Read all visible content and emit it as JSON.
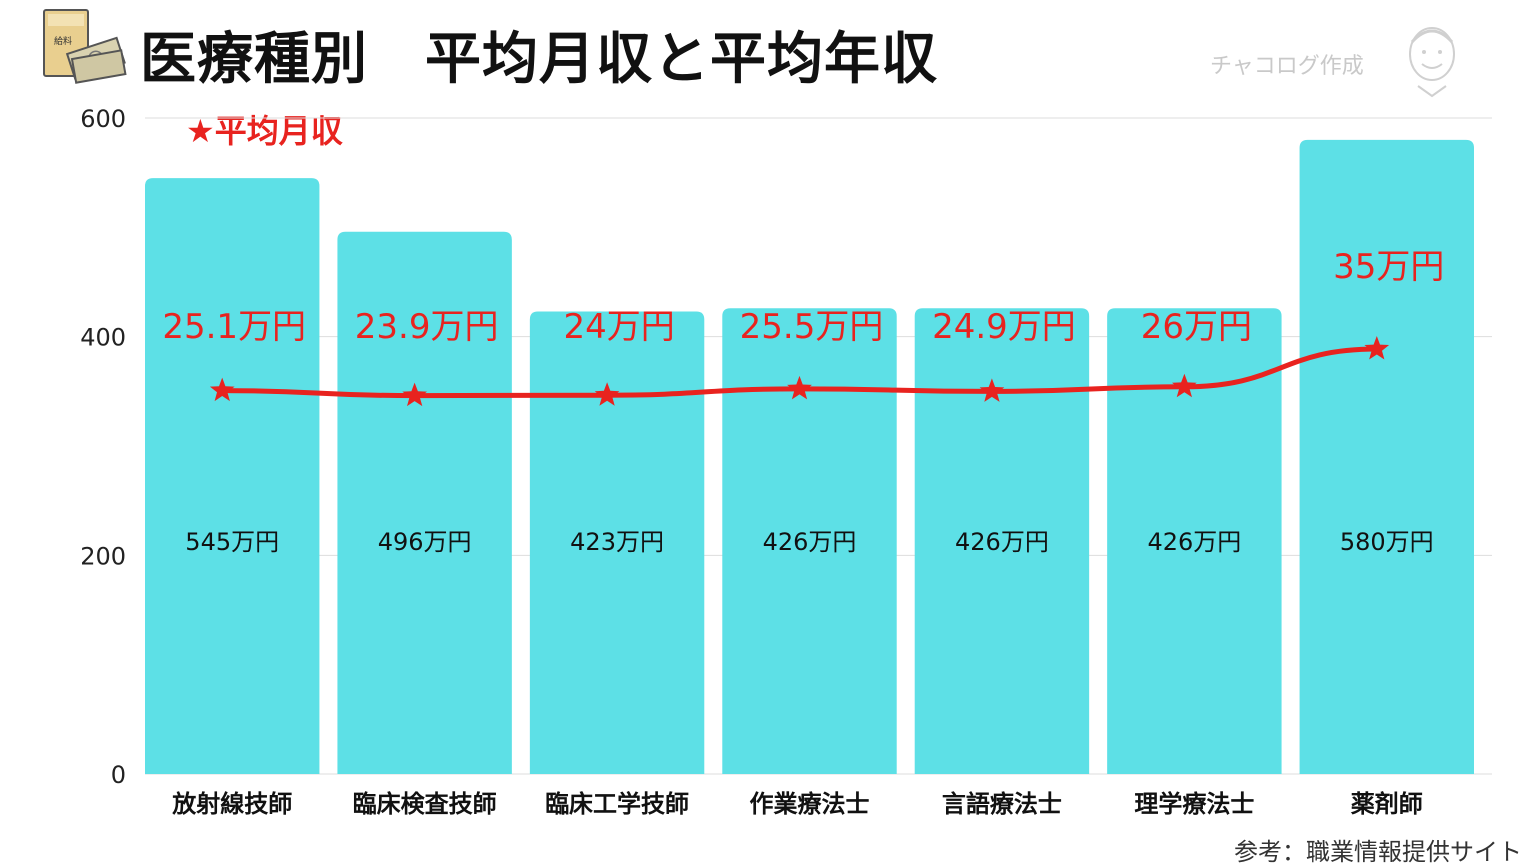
{
  "title": "医療種別　平均月収と平均年収",
  "watermark": "チャコログ作成",
  "legend": "★平均月収",
  "source": "参考：職業情報提供サイト",
  "icons": {
    "salary_envelope": "salary-envelope-icon",
    "avatar": "avatar-icon"
  },
  "icon_text": {
    "envelope_label": "給料"
  },
  "colors": {
    "bar": "#5de0e6",
    "line": "#e8231f",
    "grid": "#dddddd"
  },
  "chart_data": {
    "type": "bar",
    "categories": [
      "放射線技師",
      "臨床検査技師",
      "臨床工学技師",
      "作業療法士",
      "言語療法士",
      "理学療法士",
      "薬剤師"
    ],
    "ylim": [
      0,
      600
    ],
    "yticks": [
      0,
      200,
      400,
      600
    ],
    "grid": true,
    "series": [
      {
        "type": "bar",
        "values": [
          545,
          496,
          423,
          426,
          426,
          426,
          580
        ],
        "labels": [
          "545万円",
          "496万円",
          "423万円",
          "426万円",
          "426万円",
          "426万円",
          "580万円"
        ]
      },
      {
        "name": "平均月収",
        "type": "line",
        "marker": "star",
        "values": [
          25.1,
          23.9,
          24,
          25.5,
          24.9,
          26,
          35
        ],
        "labels": [
          "25.1万円",
          "23.9万円",
          "24万円",
          "25.5万円",
          "24.9万円",
          "26万円",
          "35万円"
        ]
      }
    ]
  }
}
